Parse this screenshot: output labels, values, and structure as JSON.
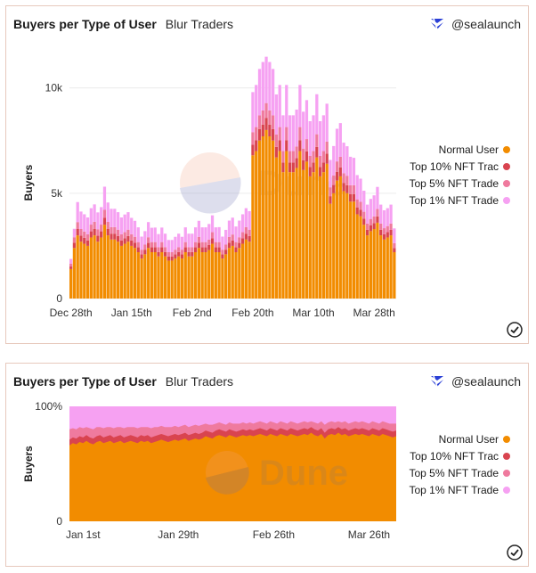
{
  "brand": {
    "name": "@sealaunch",
    "icon": "sealaunch-logo-icon"
  },
  "colors": {
    "normal": "#f28c00",
    "top10": "#d9444f",
    "top5": "#ef7a9e",
    "top1": "#f6a1f2",
    "card_border": "#e7c9bd"
  },
  "chart_data": [
    {
      "type": "bar",
      "stacked": true,
      "title": "Buyers per Type of User",
      "subtitle": "Blur Traders",
      "xlabel": "",
      "ylabel": "Buyers",
      "ylim": [
        0,
        11000
      ],
      "y_ticks": [
        0,
        5000,
        10000
      ],
      "y_tick_labels": [
        "0",
        "5k",
        "10k"
      ],
      "x_tick_labels": [
        "Dec 28th",
        "Jan 15th",
        "Feb 2nd",
        "Feb 20th",
        "Mar 10th",
        "Mar 28th"
      ],
      "x_tick_index": [
        0,
        18,
        36,
        54,
        72,
        90
      ],
      "watermark": "Dune",
      "legend": [
        "Normal User",
        "Top 10% NFT Trac",
        "Top 5% NFT Trade",
        "Top 1% NFT Trade"
      ],
      "series": [
        {
          "name": "Normal User",
          "values": [
            1400,
            2400,
            3000,
            2700,
            2600,
            2500,
            2900,
            3000,
            2700,
            2900,
            3500,
            3000,
            2800,
            2800,
            2700,
            2500,
            2600,
            2700,
            2500,
            2400,
            2200,
            1900,
            2100,
            2400,
            2200,
            2200,
            2000,
            2200,
            2000,
            1800,
            1800,
            1900,
            2000,
            1900,
            2200,
            2000,
            2000,
            2200,
            2400,
            2200,
            2200,
            2300,
            2600,
            2200,
            2200,
            1900,
            2100,
            2400,
            2500,
            2200,
            2400,
            2600,
            2800,
            2700,
            6800,
            7000,
            7500,
            7700,
            8000,
            7700,
            7500,
            6700,
            7000,
            6000,
            7000,
            6000,
            6000,
            6200,
            7000,
            6100,
            6500,
            5800,
            6000,
            6700,
            5800,
            6000,
            6400,
            4500,
            5000,
            5600,
            5800,
            5100,
            5000,
            4600,
            4600,
            4000,
            3900,
            3500,
            3000,
            3200,
            3300,
            3600,
            3000,
            2800,
            2900,
            3000,
            2200
          ]
        },
        {
          "name": "Top 10% NFT Trac",
          "values": [
            120,
            250,
            300,
            290,
            280,
            260,
            290,
            300,
            280,
            290,
            330,
            300,
            280,
            280,
            270,
            260,
            260,
            270,
            260,
            250,
            230,
            200,
            220,
            240,
            230,
            230,
            210,
            230,
            210,
            190,
            190,
            200,
            210,
            200,
            230,
            210,
            210,
            230,
            250,
            230,
            230,
            240,
            260,
            230,
            230,
            200,
            220,
            250,
            260,
            230,
            240,
            260,
            280,
            270,
            500,
            520,
            550,
            560,
            580,
            560,
            550,
            500,
            520,
            460,
            520,
            460,
            460,
            470,
            520,
            470,
            490,
            450,
            460,
            500,
            450,
            460,
            480,
            360,
            390,
            420,
            430,
            390,
            380,
            360,
            360,
            330,
            320,
            290,
            260,
            270,
            280,
            300,
            260,
            250,
            250,
            260,
            200
          ]
        },
        {
          "name": "Top 5% NFT Trade",
          "values": [
            140,
            260,
            330,
            310,
            300,
            290,
            320,
            340,
            310,
            320,
            380,
            340,
            310,
            310,
            300,
            290,
            290,
            300,
            290,
            280,
            250,
            220,
            240,
            270,
            250,
            250,
            230,
            250,
            230,
            210,
            210,
            220,
            230,
            220,
            250,
            230,
            230,
            250,
            280,
            250,
            250,
            260,
            290,
            250,
            250,
            220,
            240,
            270,
            280,
            250,
            270,
            290,
            310,
            300,
            600,
            620,
            650,
            670,
            700,
            670,
            650,
            590,
            620,
            540,
            620,
            540,
            540,
            550,
            620,
            550,
            580,
            520,
            540,
            600,
            520,
            540,
            570,
            420,
            450,
            490,
            500,
            460,
            450,
            420,
            420,
            380,
            370,
            330,
            300,
            310,
            320,
            350,
            300,
            290,
            290,
            300,
            230
          ]
        },
        {
          "name": "Top 1% NFT Trade",
          "values": [
            220,
            400,
            950,
            830,
            820,
            800,
            780,
            830,
            800,
            830,
            1100,
            920,
            870,
            870,
            830,
            800,
            840,
            830,
            780,
            760,
            700,
            620,
            640,
            720,
            680,
            690,
            620,
            690,
            640,
            580,
            580,
            610,
            640,
            610,
            700,
            640,
            640,
            700,
            760,
            700,
            700,
            740,
            800,
            700,
            710,
            620,
            700,
            780,
            800,
            740,
            790,
            850,
            900,
            880,
            1900,
            2000,
            2200,
            2300,
            2200,
            2300,
            2200,
            1900,
            2000,
            1700,
            2000,
            1700,
            1700,
            1750,
            2000,
            1750,
            1850,
            1650,
            1700,
            1900,
            1650,
            1700,
            1800,
            1300,
            1400,
            1550,
            1600,
            1450,
            1400,
            1350,
            1300,
            1150,
            1100,
            1000,
            900,
            950,
            1000,
            1050,
            900,
            850,
            850,
            900,
            700
          ]
        }
      ]
    },
    {
      "type": "area",
      "stacked": true,
      "normalized": true,
      "title": "Buyers per Type of User",
      "subtitle": "Blur Traders",
      "xlabel": "",
      "ylabel": "Buyers",
      "ylim": [
        0,
        100
      ],
      "y_tick_labels": [
        "0",
        "100%"
      ],
      "x_tick_labels": [
        "Jan 1st",
        "Jan 29th",
        "Feb 26th",
        "Mar 26th"
      ],
      "x_tick_index": [
        4,
        32,
        60,
        88
      ],
      "watermark": "Dune",
      "legend": [
        "Normal User",
        "Top 10% NFT Trac",
        "Top 5% NFT Trade",
        "Top 1% NFT Trade"
      ],
      "series_cumulative_note": "values are cumulative percent boundaries of the stacked areas",
      "boundaries": [
        {
          "name": "Normal User",
          "values": [
            66,
            68,
            67,
            69,
            68,
            70,
            68,
            67,
            69,
            70,
            68,
            69,
            70,
            68,
            69,
            70,
            68,
            69,
            70,
            69,
            68,
            70,
            69,
            70,
            68,
            69,
            70,
            71,
            70,
            69,
            70,
            71,
            70,
            71,
            72,
            70,
            71,
            72,
            71,
            72,
            74,
            73,
            72,
            74,
            75,
            74,
            73,
            75,
            74,
            73,
            74,
            75,
            74,
            75,
            74,
            75,
            76,
            75,
            74,
            76,
            75,
            74,
            76,
            75,
            74,
            76,
            75,
            74,
            75,
            76,
            75,
            77,
            75,
            74,
            76,
            72,
            75,
            76,
            75,
            77,
            75,
            76,
            74,
            75,
            76,
            75,
            76,
            75,
            74,
            76,
            75,
            74,
            76,
            75,
            74,
            73,
            74
          ]
        },
        {
          "name": "Top 10% NFT Trac",
          "values": [
            71,
            73,
            72,
            74,
            73,
            75,
            73,
            72,
            74,
            75,
            73,
            74,
            75,
            73,
            74,
            75,
            73,
            74,
            75,
            74,
            73,
            75,
            74,
            75,
            73,
            74,
            75,
            76,
            75,
            74,
            75,
            76,
            75,
            76,
            77,
            75,
            76,
            77,
            76,
            77,
            79,
            78,
            77,
            79,
            80,
            79,
            78,
            80,
            79,
            78,
            79,
            80,
            79,
            80,
            79,
            80,
            81,
            80,
            79,
            81,
            80,
            79,
            81,
            80,
            79,
            81,
            80,
            79,
            80,
            81,
            80,
            82,
            80,
            79,
            81,
            77,
            80,
            81,
            80,
            82,
            80,
            81,
            79,
            80,
            81,
            80,
            81,
            80,
            79,
            81,
            80,
            79,
            81,
            80,
            79,
            78,
            79
          ]
        },
        {
          "name": "Top 5% NFT Trade",
          "values": [
            80,
            81,
            80,
            82,
            81,
            82,
            81,
            80,
            82,
            82,
            81,
            82,
            82,
            81,
            82,
            82,
            81,
            82,
            82,
            82,
            81,
            82,
            82,
            82,
            81,
            82,
            82,
            83,
            82,
            82,
            82,
            83,
            82,
            83,
            84,
            82,
            83,
            84,
            83,
            84,
            85,
            84,
            84,
            85,
            86,
            85,
            84,
            86,
            85,
            85,
            85,
            86,
            85,
            86,
            85,
            86,
            87,
            86,
            85,
            87,
            86,
            85,
            87,
            86,
            85,
            87,
            86,
            85,
            86,
            87,
            86,
            87,
            86,
            85,
            87,
            84,
            86,
            87,
            86,
            87,
            86,
            87,
            85,
            86,
            87,
            86,
            87,
            86,
            85,
            87,
            86,
            85,
            87,
            86,
            85,
            85,
            85
          ]
        },
        {
          "name": "Top 1% NFT Trade",
          "values": [
            100,
            100,
            100,
            100,
            100,
            100,
            100,
            100,
            100,
            100,
            100,
            100,
            100,
            100,
            100,
            100,
            100,
            100,
            100,
            100,
            100,
            100,
            100,
            100,
            100,
            100,
            100,
            100,
            100,
            100,
            100,
            100,
            100,
            100,
            100,
            100,
            100,
            100,
            100,
            100,
            100,
            100,
            100,
            100,
            100,
            100,
            100,
            100,
            100,
            100,
            100,
            100,
            100,
            100,
            100,
            100,
            100,
            100,
            100,
            100,
            100,
            100,
            100,
            100,
            100,
            100,
            100,
            100,
            100,
            100,
            100,
            100,
            100,
            100,
            100,
            100,
            100,
            100,
            100,
            100,
            100,
            100,
            100,
            100,
            100,
            100,
            100,
            100,
            100,
            100,
            100,
            100,
            100,
            100,
            100,
            100,
            100
          ]
        }
      ]
    }
  ]
}
